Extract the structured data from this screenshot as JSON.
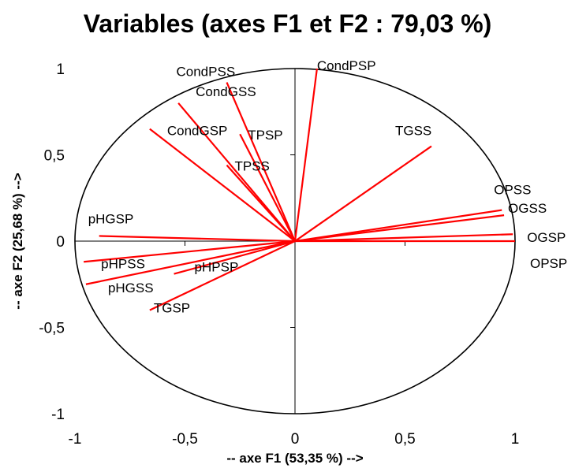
{
  "chart_data": {
    "type": "scatter",
    "title": "Variables (axes F1 et F2 : 79,03 %)",
    "xlabel": "-- axe F1 (53,35 %) -->",
    "ylabel": "-- axe F2 (25,68 %) -->",
    "xlim": [
      -1,
      1
    ],
    "ylim": [
      -1,
      1
    ],
    "x_ticks": [
      "-1",
      "-0,5",
      "0",
      "0,5",
      "1"
    ],
    "y_ticks": [
      "1",
      "0,5",
      "0",
      "-0,5",
      "-1"
    ],
    "correlation_circle": true,
    "vector_color": "#ff0000",
    "variables": [
      {
        "name": "CondPSS",
        "x": -0.31,
        "y": 0.92
      },
      {
        "name": "CondPSP",
        "x": 0.1,
        "y": 1.0
      },
      {
        "name": "CondGSS",
        "x": -0.53,
        "y": 0.8
      },
      {
        "name": "CondGSP",
        "x": -0.66,
        "y": 0.65
      },
      {
        "name": "TPSP",
        "x": -0.25,
        "y": 0.62
      },
      {
        "name": "TPSS",
        "x": -0.31,
        "y": 0.44
      },
      {
        "name": "TGSS",
        "x": 0.62,
        "y": 0.55
      },
      {
        "name": "OPSS",
        "x": 0.94,
        "y": 0.18
      },
      {
        "name": "OGSS",
        "x": 0.95,
        "y": 0.15
      },
      {
        "name": "OGSP",
        "x": 0.99,
        "y": 0.04
      },
      {
        "name": "OPSP",
        "x": 1.0,
        "y": 0.0
      },
      {
        "name": "pHGSP",
        "x": -0.89,
        "y": 0.03
      },
      {
        "name": "pHPSS",
        "x": -0.96,
        "y": -0.12
      },
      {
        "name": "pHGSS",
        "x": -0.95,
        "y": -0.25
      },
      {
        "name": "pHPSP",
        "x": -0.55,
        "y": -0.19
      },
      {
        "name": "TGSP",
        "x": -0.66,
        "y": -0.4
      }
    ]
  }
}
